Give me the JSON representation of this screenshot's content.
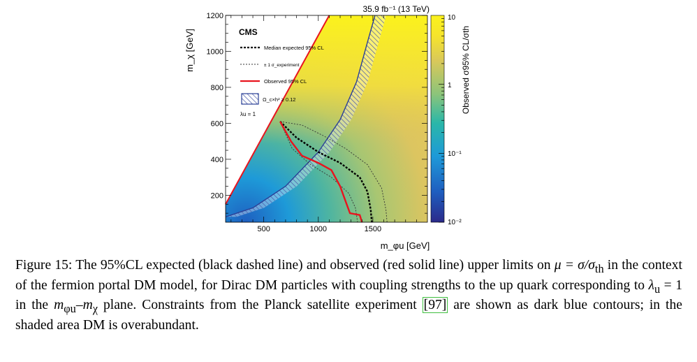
{
  "chart_data": {
    "type": "heatmap",
    "header": "35.9 fb⁻¹ (13 TeV)",
    "experiment": "CMS",
    "xlabel": "m_φu [GeV]",
    "ylabel": "m_χ [GeV]",
    "zlabel": "Observed σ95% CL/σth",
    "xlim": [
      150,
      2000
    ],
    "ylim": [
      50,
      1200
    ],
    "x_ticks": [
      500,
      1000,
      1500
    ],
    "y_ticks": [
      200,
      400,
      600,
      800,
      1000,
      1200
    ],
    "z_scale": "log",
    "z_range": [
      0.01,
      10
    ],
    "z_ticks": [
      "10⁻²",
      "10⁻¹",
      "1",
      "10"
    ],
    "legend_placement": "top-left",
    "legend": [
      {
        "label": "Median expected 95% CL",
        "style": "black dashed"
      },
      {
        "label": "± 1 σ_experiment",
        "style": "black thin dashed"
      },
      {
        "label": "Observed 95% CL",
        "style": "red solid"
      },
      {
        "label": "Ω_c×h² ≥ 0.12",
        "style": "blue hatched"
      },
      {
        "label": "λu = 1",
        "style": "text"
      }
    ],
    "colors": {
      "expected": "#000000",
      "observed": "#e8141e",
      "relic": "#2a3f96"
    },
    "diagonal": [
      [
        150,
        150
      ],
      [
        1100,
        1200
      ]
    ],
    "expected_limit": [
      [
        650,
        610
      ],
      [
        800,
        520
      ],
      [
        1000,
        440
      ],
      [
        1200,
        380
      ],
      [
        1380,
        300
      ],
      [
        1450,
        220
      ],
      [
        1480,
        120
      ],
      [
        1490,
        50
      ]
    ],
    "expected_plus1sigma": [
      [
        650,
        610
      ],
      [
        850,
        590
      ],
      [
        1050,
        530
      ],
      [
        1250,
        460
      ],
      [
        1450,
        370
      ],
      [
        1580,
        240
      ],
      [
        1620,
        120
      ],
      [
        1630,
        50
      ]
    ],
    "expected_minus1sigma": [
      [
        650,
        610
      ],
      [
        760,
        460
      ],
      [
        930,
        370
      ],
      [
        1120,
        300
      ],
      [
        1280,
        210
      ],
      [
        1340,
        130
      ],
      [
        1360,
        50
      ]
    ],
    "observed_limit": [
      [
        650,
        610
      ],
      [
        750,
        500
      ],
      [
        850,
        420
      ],
      [
        1000,
        380
      ],
      [
        1120,
        340
      ],
      [
        1200,
        250
      ],
      [
        1260,
        150
      ],
      [
        1290,
        100
      ],
      [
        1380,
        90
      ],
      [
        1400,
        50
      ]
    ],
    "relic_boundary": [
      [
        150,
        80
      ],
      [
        400,
        130
      ],
      [
        700,
        250
      ],
      [
        1000,
        440
      ],
      [
        1200,
        620
      ],
      [
        1350,
        830
      ],
      [
        1450,
        1050
      ],
      [
        1520,
        1200
      ]
    ]
  },
  "caption": {
    "prefix": "Figure 15: The 95%CL expected (black dashed line) and observed (red solid line) upper limits on ",
    "mu": "μ = σ/σ",
    "mu_sub": "th",
    "mid": " in the context of the fermion portal DM model, for Dirac DM particles with coupling strengths to the up quark corresponding to ",
    "lambda": "λ",
    "lambda_sub": "u",
    "lambda_val": " = 1 in the ",
    "plane": "m",
    "plane_sub": "φu",
    "plane_dash": "–m",
    "plane_sub2": "χ",
    "plane_suffix": " plane. Constraints from the Planck satellite experiment ",
    "ref": "[97]",
    "suffix": " are shown as dark blue contours; in the shaded area DM is overabundant."
  }
}
